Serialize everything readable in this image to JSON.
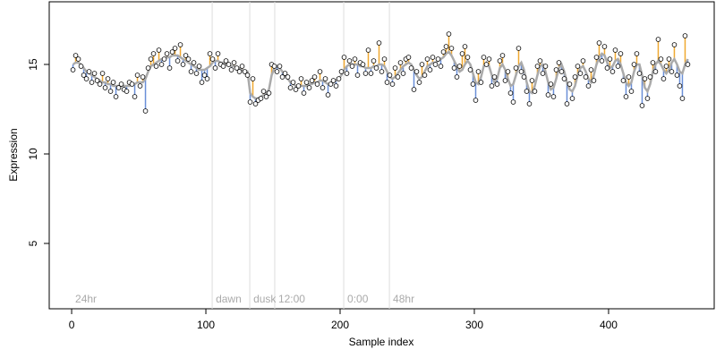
{
  "chart_data": {
    "type": "scatter",
    "xlabel": "Sample index",
    "ylabel": "Expression",
    "xlim": [
      -16.7,
      478.7
    ],
    "ylim": [
      1.35,
      18.5
    ],
    "xticks": [
      0,
      100,
      200,
      300,
      400
    ],
    "yticks": [
      5,
      10,
      15
    ],
    "point_color": "#ffffff",
    "fit_color": "#aaaaaa",
    "positive_color": "#f0a830",
    "negative_color": "#6a8fd8",
    "vline_color": "#dddddd",
    "vlines": [
      104.7,
      132.7,
      151.3,
      202.7,
      236.7
    ],
    "phase_labels": [
      {
        "x": 0,
        "label": "24hr"
      },
      {
        "x": 104.7,
        "label": "dawn"
      },
      {
        "x": 132.7,
        "label": "dusk"
      },
      {
        "x": 151.3,
        "label": "12:00"
      },
      {
        "x": 202.7,
        "label": "0:00"
      },
      {
        "x": 236.7,
        "label": "48hr"
      }
    ],
    "x": [
      1,
      3,
      5,
      7,
      9,
      11,
      13,
      15,
      17,
      19,
      21,
      23,
      25,
      27,
      29,
      31,
      33,
      35,
      37,
      39,
      41,
      43,
      45,
      47,
      49,
      51,
      53,
      55,
      57,
      59,
      61,
      63,
      65,
      67,
      69,
      71,
      73,
      75,
      77,
      79,
      81,
      83,
      85,
      87,
      89,
      91,
      93,
      95,
      97,
      99,
      101,
      103,
      105,
      107,
      109,
      111,
      113,
      115,
      117,
      119,
      121,
      123,
      125,
      127,
      129,
      131,
      133,
      135,
      137,
      139,
      141,
      143,
      145,
      147,
      149,
      151,
      153,
      155,
      157,
      159,
      161,
      163,
      165,
      167,
      169,
      171,
      173,
      175,
      177,
      179,
      181,
      183,
      185,
      187,
      189,
      191,
      193,
      195,
      197,
      199,
      201,
      203,
      205,
      207,
      209,
      211,
      213,
      215,
      217,
      219,
      221,
      223,
      225,
      227,
      229,
      231,
      233,
      235,
      237,
      239,
      241,
      243,
      245,
      247,
      249,
      251,
      253,
      255,
      257,
      259,
      261,
      263,
      265,
      267,
      269,
      271,
      273,
      275,
      277,
      279,
      281,
      283,
      285,
      287,
      289,
      291,
      293,
      295,
      297,
      299,
      301,
      303,
      305,
      307,
      309,
      311,
      313,
      315,
      317,
      319,
      321,
      323,
      325,
      327,
      329,
      331,
      333,
      335,
      337,
      339,
      341,
      343,
      345,
      347,
      349,
      351,
      353,
      355,
      357,
      359,
      361,
      363,
      365,
      367,
      369,
      371,
      373,
      375,
      377,
      379,
      381,
      383,
      385,
      387,
      389,
      391,
      393,
      395,
      397,
      399,
      401,
      403,
      405,
      407,
      409,
      411,
      413,
      415,
      417,
      419,
      421,
      423,
      425,
      427,
      429,
      431,
      433,
      435,
      437,
      439,
      441,
      443,
      445,
      447,
      449,
      451,
      453,
      455,
      457,
      459
    ],
    "values": [
      14.7,
      15.5,
      15.3,
      14.9,
      14.4,
      14.2,
      14.6,
      14.0,
      14.5,
      14.1,
      13.9,
      14.5,
      13.7,
      14.2,
      13.5,
      14.0,
      13.2,
      13.7,
      13.9,
      13.6,
      13.5,
      14.0,
      13.9,
      13.2,
      14.4,
      13.8,
      14.3,
      12.4,
      14.8,
      15.3,
      15.6,
      14.9,
      15.8,
      15.0,
      15.3,
      15.6,
      14.8,
      15.7,
      15.9,
      15.2,
      16.1,
      15.0,
      15.5,
      15.3,
      14.6,
      15.1,
      14.5,
      14.9,
      14.0,
      14.4,
      14.2,
      15.6,
      15.3,
      14.8,
      15.6,
      15.0,
      14.9,
      15.2,
      15.0,
      14.7,
      15.1,
      14.8,
      14.6,
      14.9,
      14.6,
      14.4,
      12.9,
      14.2,
      12.8,
      13.0,
      13.1,
      13.5,
      13.2,
      13.4,
      15.0,
      14.9,
      14.6,
      14.9,
      14.3,
      14.5,
      14.3,
      13.7,
      14.0,
      13.6,
      13.8,
      14.2,
      13.4,
      14.0,
      13.7,
      14.1,
      14.3,
      13.9,
      14.6,
      13.7,
      14.2,
      13.3,
      13.9,
      14.1,
      13.8,
      14.2,
      14.6,
      15.4,
      14.5,
      15.2,
      14.9,
      15.3,
      14.4,
      15.1,
      15.0,
      14.5,
      15.8,
      14.5,
      15.2,
      14.8,
      16.2,
      14.6,
      15.3,
      14.0,
      14.4,
      13.9,
      14.8,
      14.3,
      15.1,
      14.5,
      15.3,
      15.4,
      14.8,
      13.6,
      14.6,
      14.0,
      15.0,
      14.4,
      15.3,
      14.7,
      15.4,
      15.0,
      15.3,
      14.9,
      15.7,
      16.0,
      16.7,
      15.9,
      14.8,
      14.3,
      14.9,
      15.6,
      16.0,
      15.4,
      14.7,
      13.9,
      13.0,
      14.6,
      14.0,
      15.4,
      15.0,
      15.3,
      13.8,
      14.3,
      13.9,
      15.2,
      15.5,
      14.1,
      14.6,
      13.4,
      12.9,
      14.8,
      15.9,
      14.6,
      14.3,
      13.5,
      12.8,
      14.1,
      13.5,
      14.9,
      15.2,
      14.5,
      14.9,
      13.3,
      13.9,
      13.2,
      14.7,
      15.1,
      14.6,
      14.2,
      12.8,
      13.9,
      13.1,
      14.3,
      14.9,
      14.5,
      15.2,
      14.3,
      13.8,
      14.7,
      14.1,
      15.4,
      16.2,
      15.2,
      16.0,
      14.8,
      15.3,
      14.6,
      15.8,
      14.9,
      15.6,
      14.1,
      13.2,
      14.3,
      13.5,
      15.0,
      15.6,
      14.5,
      12.7,
      14.2,
      13.1,
      14.3,
      15.1,
      14.6,
      16.4,
      15.3,
      14.2,
      14.9,
      15.3,
      14.6,
      16.1,
      14.4,
      13.8,
      13.1,
      16.6,
      15.0
    ],
    "fit": [
      15.0,
      15.1,
      15.1,
      15.0,
      14.8,
      14.6,
      14.5,
      14.4,
      14.3,
      14.2,
      14.1,
      14.0,
      14.0,
      13.9,
      13.9,
      13.8,
      13.8,
      13.8,
      13.8,
      13.8,
      13.8,
      13.8,
      13.9,
      13.9,
      14.0,
      14.0,
      14.0,
      14.2,
      14.6,
      14.9,
      15.0,
      15.1,
      15.2,
      15.3,
      15.3,
      15.4,
      15.4,
      15.5,
      15.5,
      15.5,
      15.4,
      15.3,
      15.2,
      15.1,
      15.0,
      14.9,
      14.8,
      14.7,
      14.7,
      14.7,
      14.8,
      14.9,
      15.1,
      15.2,
      15.2,
      15.1,
      15.1,
      15.0,
      15.0,
      14.9,
      14.9,
      14.8,
      14.8,
      14.7,
      14.6,
      14.6,
      13.4,
      13.2,
      13.1,
      13.1,
      13.2,
      13.3,
      13.4,
      13.6,
      14.4,
      14.8,
      14.9,
      14.8,
      14.6,
      14.4,
      14.2,
      14.0,
      13.9,
      13.8,
      13.8,
      13.8,
      13.8,
      13.8,
      13.9,
      13.9,
      14.0,
      14.0,
      14.1,
      14.1,
      14.0,
      13.9,
      13.9,
      14.0,
      14.1,
      14.2,
      14.4,
      14.7,
      14.9,
      15.0,
      15.0,
      15.0,
      15.0,
      14.9,
      14.9,
      14.8,
      14.8,
      14.8,
      14.9,
      14.9,
      15.0,
      15.0,
      14.9,
      14.6,
      14.3,
      14.2,
      14.3,
      14.5,
      14.7,
      14.9,
      15.0,
      15.1,
      15.0,
      14.7,
      14.4,
      14.2,
      14.3,
      14.6,
      14.9,
      15.0,
      15.1,
      15.1,
      15.2,
      15.3,
      15.4,
      15.6,
      15.7,
      15.5,
      15.2,
      14.9,
      14.6,
      14.7,
      15.0,
      15.2,
      15.0,
      14.5,
      14.0,
      13.9,
      14.3,
      14.9,
      15.1,
      14.9,
      14.4,
      14.0,
      14.2,
      14.8,
      15.0,
      14.7,
      14.2,
      13.8,
      13.9,
      14.4,
      14.9,
      15.1,
      14.7,
      14.0,
      13.5,
      13.4,
      13.8,
      14.4,
      14.9,
      15.0,
      14.6,
      14.0,
      13.6,
      13.7,
      14.2,
      14.8,
      15.0,
      14.6,
      14.0,
      13.6,
      13.5,
      13.8,
      14.4,
      14.8,
      14.9,
      14.6,
      14.2,
      14.0,
      14.4,
      15.0,
      15.4,
      15.6,
      15.5,
      15.1,
      14.8,
      14.9,
      15.2,
      15.3,
      15.0,
      14.5,
      14.0,
      13.8,
      14.0,
      14.6,
      15.0,
      15.0,
      14.4,
      13.7,
      13.5,
      13.9,
      14.6,
      15.0,
      15.2,
      15.0,
      14.7,
      14.5,
      14.7,
      15.1,
      15.3,
      15.0,
      14.6,
      14.5,
      15.0,
      15.3
    ]
  }
}
